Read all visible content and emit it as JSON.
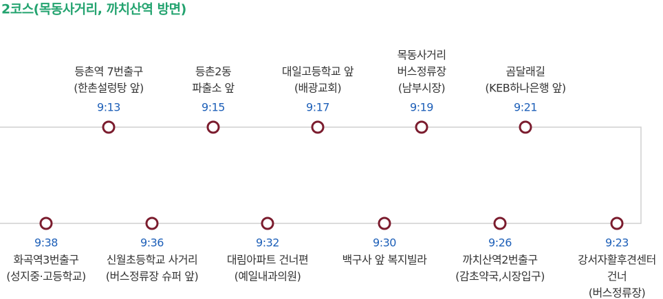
{
  "title": "2코스(목동사거리, 까치산역 방면)",
  "top_stops": [
    {
      "label": [
        "등촌역 7번출구",
        "(한촌설렁탕  앞)"
      ],
      "time": "9:13"
    },
    {
      "label": [
        "등촌2동",
        "파출소 앞"
      ],
      "time": "9:15"
    },
    {
      "label": [
        "대일고등학교 앞",
        "(배광교회)"
      ],
      "time": "9:17"
    },
    {
      "label": [
        "목동사거리",
        "버스정류장",
        "(남부시장)"
      ],
      "time": "9:19"
    },
    {
      "label": [
        "곰달래길",
        "(KEB하나은행 앞)"
      ],
      "time": "9:21"
    }
  ],
  "bottom_stops": [
    {
      "label": [
        "화곡역3번출구",
        "(성지중·고등학교)"
      ],
      "time": "9:38"
    },
    {
      "label": [
        "신월초등학교 사거리",
        "(버스정류장 슈퍼 앞)"
      ],
      "time": "9:36"
    },
    {
      "label": [
        "대림아파트 건너편",
        "(예일내과의원)"
      ],
      "time": "9:32"
    },
    {
      "label": [
        "백구사 앞 복지빌라"
      ],
      "time": "9:30"
    },
    {
      "label": [
        "까치산역2번출구",
        "(감초약국,시장입구)"
      ],
      "time": "9:26"
    },
    {
      "label": [
        "강서자활후견센터",
        "건너",
        "(버스정류장)"
      ],
      "time": "9:23"
    }
  ]
}
